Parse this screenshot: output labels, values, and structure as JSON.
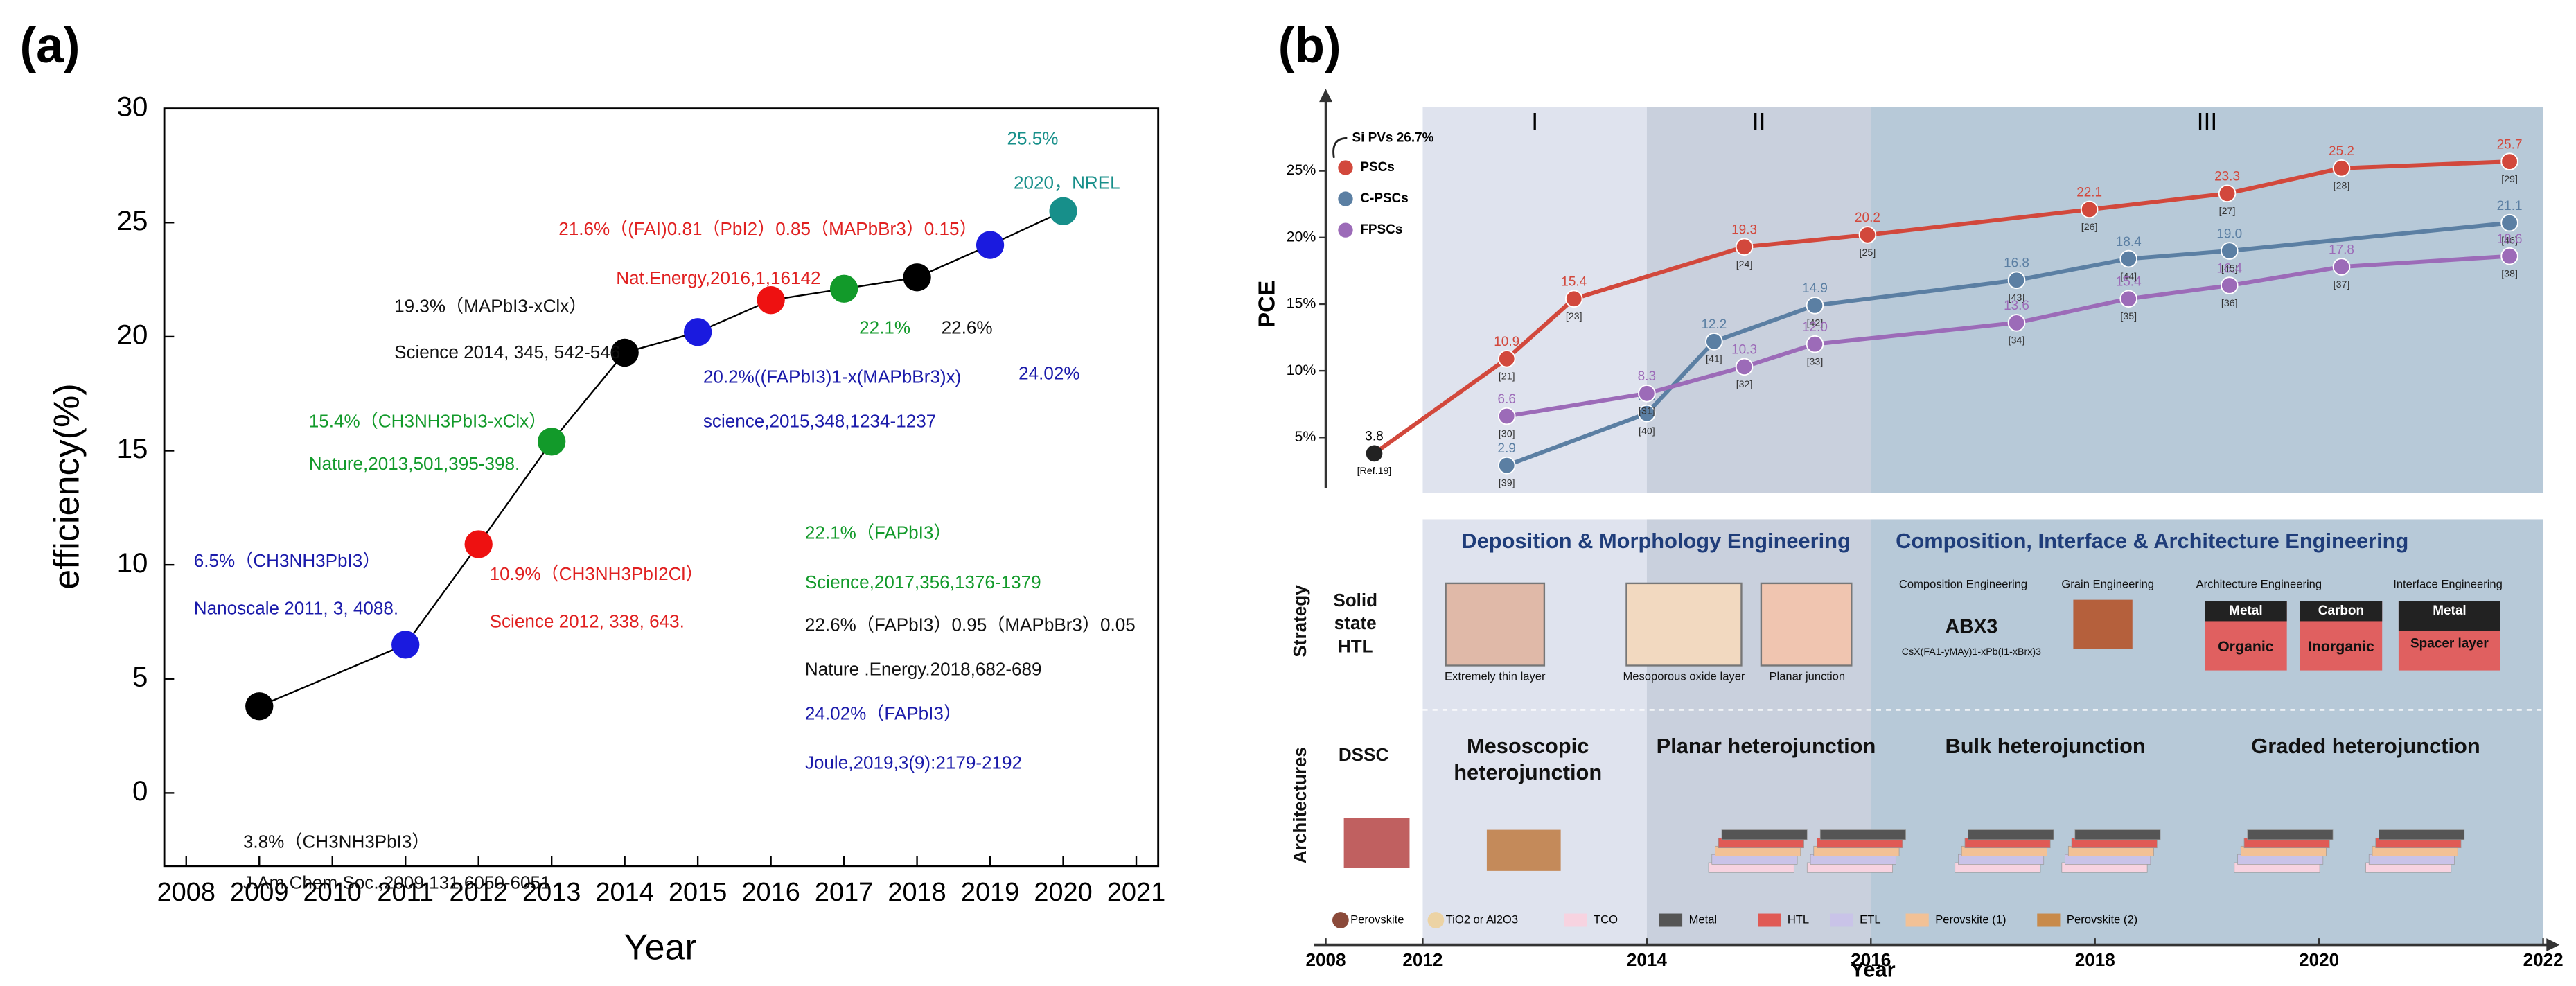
{
  "panel_labels": [
    "(a)",
    "(b)"
  ],
  "chart_data": [
    {
      "type": "line",
      "xlabel": "Year",
      "ylabel": "efficiency(%)",
      "x": [
        2009,
        2011,
        2012,
        2013,
        2014,
        2015,
        2016,
        2017,
        2018,
        2019,
        2020
      ],
      "values": [
        3.8,
        6.5,
        10.9,
        15.4,
        19.3,
        20.2,
        21.6,
        22.1,
        22.6,
        24.02,
        25.5
      ],
      "colors": [
        "#000000",
        "#1a1adf",
        "#ee1111",
        "#129a2a",
        "#000000",
        "#1a1adf",
        "#ee1111",
        "#129a2a",
        "#000000",
        "#1a1adf",
        "#178f8a"
      ],
      "line_color": "#000000",
      "xlim": [
        2007.7,
        2021.3
      ],
      "xticks": [
        2008,
        2009,
        2010,
        2011,
        2012,
        2013,
        2014,
        2015,
        2016,
        2017,
        2018,
        2019,
        2020,
        2021
      ],
      "ylim": [
        -3.2,
        30
      ],
      "yticks": [
        0,
        5,
        10,
        15,
        20,
        25,
        30
      ],
      "annotations": [
        {
          "text": "25.5%",
          "color": "#178f8a"
        },
        {
          "text": "2020，NREL",
          "color": "#178f8a"
        },
        {
          "text": "21.6%（(FAI)0.81（PbI2）0.85（MAPbBr3）0.15）",
          "color": "#e02020"
        },
        {
          "text": "Nat.Energy,2016,1,16142",
          "color": "#e02020"
        },
        {
          "text": "19.3%（MAPbI3-xClx）",
          "color": "#111111"
        },
        {
          "text": "Science 2014, 345, 542-546",
          "color": "#111111"
        },
        {
          "text": "22.1%",
          "color": "#129a2a"
        },
        {
          "text": "22.6%",
          "color": "#111111"
        },
        {
          "text": "24.02%",
          "color": "#1a1aaa"
        },
        {
          "text": "20.2%((FAPbI3)1-x(MAPbBr3)x)",
          "color": "#1a1aaa"
        },
        {
          "text": "science,2015,348,1234-1237",
          "color": "#1a1aaa"
        },
        {
          "text": "15.4%（CH3NH3PbI3-xClx）",
          "color": "#129a2a"
        },
        {
          "text": "Nature,2013,501,395-398.",
          "color": "#129a2a"
        },
        {
          "text": "6.5%（CH3NH3PbI3）",
          "color": "#1a1aaa"
        },
        {
          "text": "Nanoscale 2011, 3, 4088.",
          "color": "#1a1aaa"
        },
        {
          "text": "10.9%（CH3NH3PbI2Cl）",
          "color": "#e02020"
        },
        {
          "text": "Science 2012, 338, 643.",
          "color": "#e02020"
        },
        {
          "text": "22.1%（FAPbI3）",
          "color": "#129a2a"
        },
        {
          "text": "Science,2017,356,1376-1379",
          "color": "#129a2a"
        },
        {
          "text": "22.6%（FAPbI3）0.95（MAPbBr3）0.05",
          "color": "#111111"
        },
        {
          "text": "Nature .Energy.2018,682-689",
          "color": "#111111"
        },
        {
          "text": "24.02%（FAPbI3）",
          "color": "#1a1aaa"
        },
        {
          "text": "Joule,2019,3(9):2179-2192",
          "color": "#1a1aaa"
        },
        {
          "text": "3.8%（CH3NH3PbI3）",
          "color": "#111111"
        },
        {
          "text": "J.Am.Chem.Soc.,2009,131,6050-6051",
          "color": "#111111"
        }
      ]
    },
    {
      "type": "line",
      "xlabel": "Year",
      "ylabel": "PCE",
      "xlim": [
        2008,
        2022
      ],
      "xbreak": 2012,
      "xticks": [
        2008,
        2012,
        2014,
        2016,
        2018,
        2020,
        2022
      ],
      "ylim": [
        1.2,
        29.8
      ],
      "yticks": [
        {
          "value": 5,
          "label": "5%"
        },
        {
          "value": 10,
          "label": "10%"
        },
        {
          "value": 15,
          "label": "15%"
        },
        {
          "value": 20,
          "label": "20%"
        },
        {
          "value": 25,
          "label": "25%"
        }
      ],
      "regions": [
        {
          "label": "I",
          "from": 2012,
          "to": 2014,
          "color": "#dfe3ee"
        },
        {
          "label": "II",
          "from": 2014,
          "to": 2016,
          "color": "#c9d0dd"
        },
        {
          "label": "III",
          "from": 2016,
          "to": 2022,
          "color": "#b7c9d8"
        }
      ],
      "reference": {
        "text": "Si PVs 26.7%"
      },
      "start_point": {
        "x": 2010,
        "value": 3.8,
        "label": "[Ref.19]",
        "color": "#222222"
      },
      "series": [
        {
          "name": "PSCs",
          "color": "#d2483c",
          "x": [
            2012.75,
            2013.35,
            2014.87,
            2015.97,
            2017.95,
            2019.18,
            2020.2,
            2021.7
          ],
          "values": [
            10.9,
            15.4,
            19.3,
            20.2,
            22.1,
            23.3,
            25.2,
            25.7
          ],
          "value_labels": [
            "10.9",
            "15.4",
            "19.3",
            "20.2",
            "22.1",
            "23.3",
            "25.2",
            "25.7"
          ],
          "refs": [
            "[21]",
            "[23]",
            "[24]",
            "[25]",
            "[26]",
            "[27]",
            "[28]",
            "[29]"
          ]
        },
        {
          "name": "C-PSCs",
          "color": "#5b7fa3",
          "x": [
            2012.75,
            2014.0,
            2014.6,
            2015.5,
            2017.3,
            2018.3,
            2019.2,
            2021.7
          ],
          "values": [
            2.9,
            6.8,
            12.2,
            14.9,
            16.8,
            18.4,
            19.0,
            21.1
          ],
          "value_labels": [
            "2.9",
            "6.8",
            "12.2",
            "14.9",
            "16.8",
            "18.4",
            "19.0",
            "21.1"
          ],
          "refs": [
            "[39]",
            "[40]",
            "[41]",
            "[42]",
            "[43]",
            "[44]",
            "[45]",
            "[46]"
          ]
        },
        {
          "name": "FPSCs",
          "color": "#9c6bb8",
          "x": [
            2012.75,
            2014.0,
            2014.87,
            2015.5,
            2017.3,
            2018.3,
            2019.2,
            2020.2,
            2021.7
          ],
          "values": [
            6.6,
            8.3,
            10.3,
            12.0,
            13.6,
            15.4,
            16.4,
            17.8,
            18.6
          ],
          "value_labels": [
            "6.6",
            "8.3",
            "10.3",
            "12.0",
            "13.6",
            "15.4",
            "16.4",
            "17.8",
            "18.6"
          ],
          "refs": [
            "[30]",
            "[31]",
            "[32]",
            "[33]",
            "[34]",
            "[35]",
            "[36]",
            "[37]",
            "[38]"
          ]
        }
      ]
    }
  ],
  "diagram": {
    "texts": [
      "Deposition & Morphology Engineering",
      "Composition, Interface & Architecture Engineering",
      "Solid",
      "state",
      "HTL",
      "Extremely thin layer",
      "Mesoporous oxide layer",
      "Planar junction",
      "Composition Engineering",
      "Grain Engineering",
      "ABX3",
      "CsX(FA1-yMAy)1-xPb(I1-xBrx)3",
      "Architecture Engineering",
      "Interface Engineering",
      "Metal",
      "Carbon",
      "Organic",
      "Inorganic",
      "Metal",
      "Spacer layer",
      "DSSC",
      "Mesoscopic",
      "heterojunction",
      "Planar heterojunction",
      "Bulk heterojunction",
      "Graded heterojunction",
      "Strategy",
      "Architectures"
    ],
    "legend": [
      {
        "name": "Perovskite",
        "color": "#8b4a3a"
      },
      {
        "name": "TiO2 or Al2O3",
        "color": "#ecd3a4"
      },
      {
        "name": "TCO",
        "color": "#f7d3e0"
      },
      {
        "name": "Metal",
        "color": "#555555"
      },
      {
        "name": "HTL",
        "color": "#e05a55"
      },
      {
        "name": "ETL",
        "color": "#c9c3e8"
      },
      {
        "name": "Perovskite (1)",
        "color": "#f2c196"
      },
      {
        "name": "Perovskite (2)",
        "color": "#c88a4a"
      }
    ]
  }
}
